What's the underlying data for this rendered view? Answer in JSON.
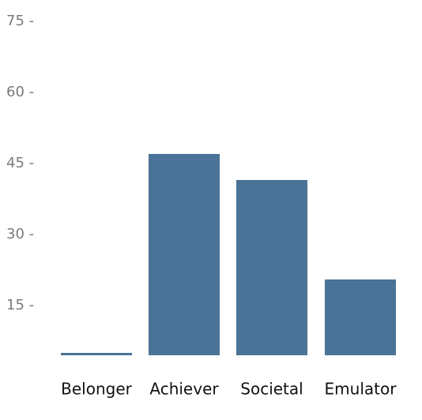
{
  "chart_data": {
    "type": "bar",
    "categories": [
      "Belonger",
      "Achiever",
      "Societal",
      "Emulator"
    ],
    "values": [
      5,
      47,
      41.5,
      20.5
    ],
    "title": "",
    "xlabel": "",
    "ylabel": "",
    "ylim": [
      0,
      75
    ],
    "yticks": [
      15,
      30,
      45,
      60,
      75
    ],
    "ytick_suffix": " -",
    "grid": false,
    "legend": "none",
    "bar_color": "#4a7397"
  }
}
